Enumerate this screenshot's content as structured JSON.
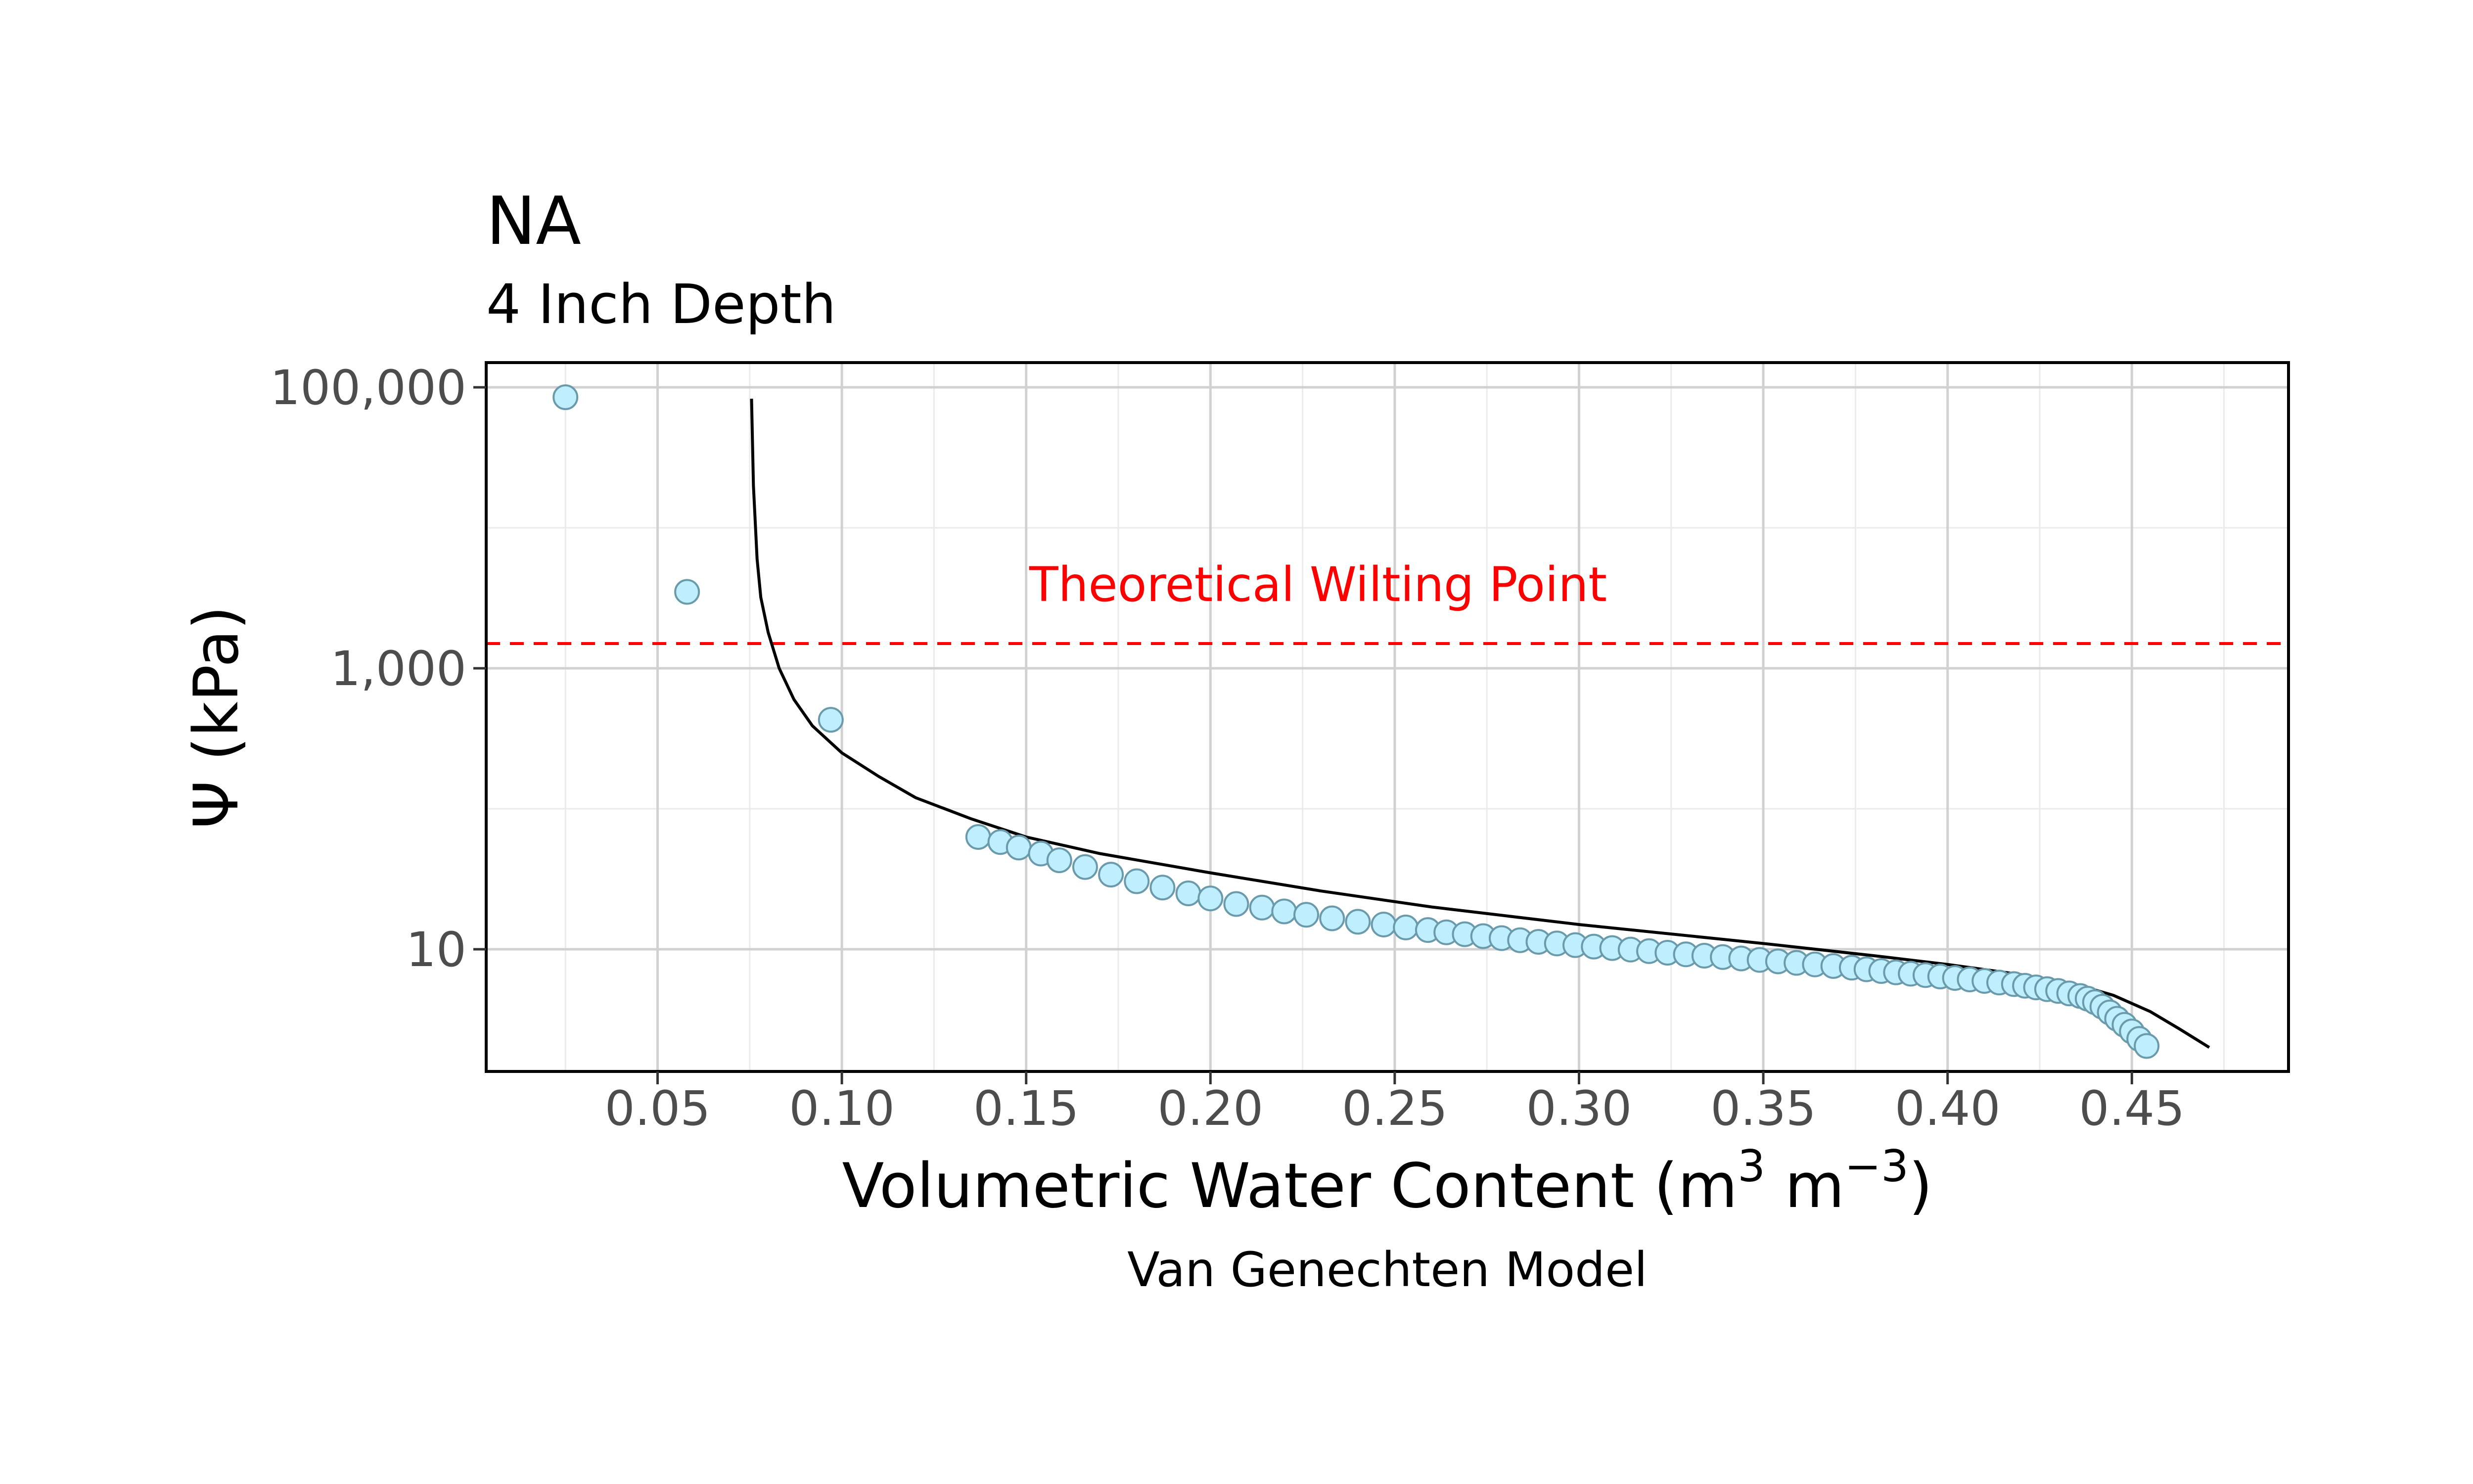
{
  "chart_data": {
    "type": "scatter",
    "title": "NA",
    "subtitle": "4 Inch Depth",
    "xlabel": "Volumetric Water Content (m",
    "xlabel_unit_a": "3",
    "xlabel_unit_mid": " m",
    "xlabel_unit_b": "−3",
    "xlabel_close": ")",
    "ylabel": "Ψ (kPa)",
    "caption": "Van Genechten Model",
    "annotation": "Theoretical Wilting Point",
    "x_scale": "linear",
    "y_scale": "log10",
    "xlim": [
      0.0035,
      0.4925
    ],
    "ylim": [
      1.35,
      150000
    ],
    "grid": true,
    "x_ticks": [
      {
        "value": 0.05,
        "label": "0.05"
      },
      {
        "value": 0.1,
        "label": "0.10"
      },
      {
        "value": 0.15,
        "label": "0.15"
      },
      {
        "value": 0.2,
        "label": "0.20"
      },
      {
        "value": 0.25,
        "label": "0.25"
      },
      {
        "value": 0.3,
        "label": "0.30"
      },
      {
        "value": 0.35,
        "label": "0.35"
      },
      {
        "value": 0.4,
        "label": "0.40"
      },
      {
        "value": 0.45,
        "label": "0.45"
      }
    ],
    "x_minor_ticks": [
      0.025,
      0.075,
      0.125,
      0.175,
      0.225,
      0.275,
      0.325,
      0.375,
      0.425,
      0.475
    ],
    "y_ticks": [
      {
        "value": 10,
        "label": "10"
      },
      {
        "value": 1000,
        "label": "1,000"
      },
      {
        "value": 100000,
        "label": "100,000"
      }
    ],
    "y_minor_ticks": [
      100,
      10000
    ],
    "wilting_point_kPa": 1500,
    "series": [
      {
        "type": "scatter",
        "fill": "#bfefff",
        "stroke": "#6b9aab",
        "points": [
          [
            0.025,
            85000
          ],
          [
            0.058,
            3500
          ],
          [
            0.097,
            430
          ],
          [
            0.137,
            63
          ],
          [
            0.143,
            58
          ],
          [
            0.148,
            53
          ],
          [
            0.154,
            48
          ],
          [
            0.159,
            43
          ],
          [
            0.166,
            38.5
          ],
          [
            0.173,
            34
          ],
          [
            0.18,
            30.5
          ],
          [
            0.187,
            27.5
          ],
          [
            0.194,
            25
          ],
          [
            0.2,
            23
          ],
          [
            0.207,
            21
          ],
          [
            0.214,
            19.8
          ],
          [
            0.22,
            18.6
          ],
          [
            0.226,
            17.6
          ],
          [
            0.233,
            16.6
          ],
          [
            0.24,
            15.7
          ],
          [
            0.247,
            15.0
          ],
          [
            0.253,
            14.3
          ],
          [
            0.259,
            13.7
          ],
          [
            0.264,
            13.2
          ],
          [
            0.269,
            12.8
          ],
          [
            0.274,
            12.4
          ],
          [
            0.279,
            12.0
          ],
          [
            0.284,
            11.6
          ],
          [
            0.289,
            11.3
          ],
          [
            0.294,
            11.0
          ],
          [
            0.299,
            10.7
          ],
          [
            0.304,
            10.45
          ],
          [
            0.309,
            10.2
          ],
          [
            0.314,
            9.95
          ],
          [
            0.319,
            9.7
          ],
          [
            0.324,
            9.45
          ],
          [
            0.329,
            9.2
          ],
          [
            0.334,
            9.0
          ],
          [
            0.339,
            8.8
          ],
          [
            0.344,
            8.6
          ],
          [
            0.349,
            8.4
          ],
          [
            0.354,
            8.2
          ],
          [
            0.359,
            8.0
          ],
          [
            0.364,
            7.8
          ],
          [
            0.369,
            7.6
          ],
          [
            0.374,
            7.4
          ],
          [
            0.378,
            7.2
          ],
          [
            0.382,
            7.0
          ],
          [
            0.386,
            6.85
          ],
          [
            0.39,
            6.7
          ],
          [
            0.394,
            6.55
          ],
          [
            0.398,
            6.4
          ],
          [
            0.402,
            6.25
          ],
          [
            0.406,
            6.1
          ],
          [
            0.41,
            5.95
          ],
          [
            0.414,
            5.8
          ],
          [
            0.418,
            5.65
          ],
          [
            0.421,
            5.5
          ],
          [
            0.424,
            5.35
          ],
          [
            0.427,
            5.2
          ],
          [
            0.43,
            5.05
          ],
          [
            0.433,
            4.85
          ],
          [
            0.436,
            4.65
          ],
          [
            0.438,
            4.45
          ],
          [
            0.44,
            4.2
          ],
          [
            0.442,
            3.9
          ],
          [
            0.444,
            3.55
          ],
          [
            0.446,
            3.2
          ],
          [
            0.448,
            2.9
          ],
          [
            0.45,
            2.6
          ],
          [
            0.452,
            2.3
          ],
          [
            0.454,
            2.05
          ]
        ]
      },
      {
        "type": "line",
        "stroke": "#000000",
        "points": [
          [
            0.0755,
            83000
          ],
          [
            0.076,
            20000
          ],
          [
            0.077,
            6000
          ],
          [
            0.078,
            3200
          ],
          [
            0.08,
            1800
          ],
          [
            0.083,
            1000
          ],
          [
            0.087,
            600
          ],
          [
            0.092,
            390
          ],
          [
            0.1,
            250
          ],
          [
            0.11,
            170
          ],
          [
            0.12,
            120
          ],
          [
            0.135,
            85
          ],
          [
            0.15,
            63
          ],
          [
            0.17,
            48
          ],
          [
            0.2,
            35
          ],
          [
            0.23,
            26
          ],
          [
            0.26,
            20
          ],
          [
            0.3,
            15
          ],
          [
            0.35,
            11
          ],
          [
            0.38,
            9
          ],
          [
            0.4,
            7.8
          ],
          [
            0.42,
            6.6
          ],
          [
            0.435,
            5.6
          ],
          [
            0.445,
            4.7
          ],
          [
            0.455,
            3.6
          ],
          [
            0.463,
            2.7
          ],
          [
            0.471,
            2.0
          ]
        ]
      }
    ]
  }
}
